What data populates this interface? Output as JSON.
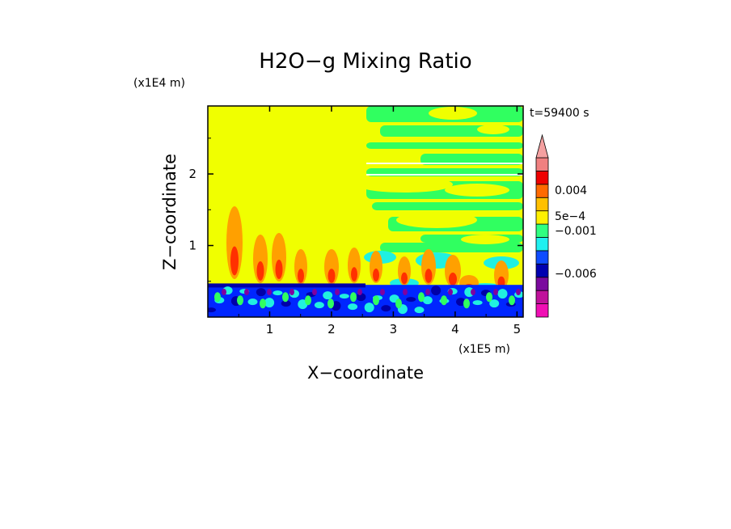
{
  "chart_data": {
    "type": "heatmap",
    "title": "H2O−g Mixing Ratio",
    "xlabel": "X−coordinate",
    "ylabel": "Z−coordinate",
    "x_scale_label": "(x1E5 m)",
    "y_scale_label": "(x1E4 m)",
    "time_label": "t=59400 s",
    "xlim": [
      0,
      5.1
    ],
    "ylim": [
      0,
      2.95
    ],
    "x_ticks": [
      1,
      2,
      3,
      4,
      5
    ],
    "y_ticks": [
      1,
      2
    ],
    "x_tick_labels": [
      "1",
      "2",
      "3",
      "4",
      "5"
    ],
    "y_tick_labels": [
      "1",
      "2"
    ],
    "colorbar": {
      "colors": [
        "#f00fb4",
        "#c0129b",
        "#7b0a9e",
        "#0000b0",
        "#0f4cff",
        "#20f0f0",
        "#30ff80",
        "#fff000",
        "#ffc000",
        "#ff6a00",
        "#ee0000",
        "#f08080",
        "#f4a0a0"
      ],
      "labels": [
        "0.004",
        "5e−4",
        "−0.001",
        "−0.006"
      ]
    },
    "colors": {
      "yellow": "#f0ff00",
      "green": "#30ff60",
      "cyan": "#20f0e0",
      "blue": "#0026ff",
      "navy": "#0000a8",
      "orange": "#ffa000",
      "red": "#ff3000",
      "purple": "#8000a0"
    }
  }
}
